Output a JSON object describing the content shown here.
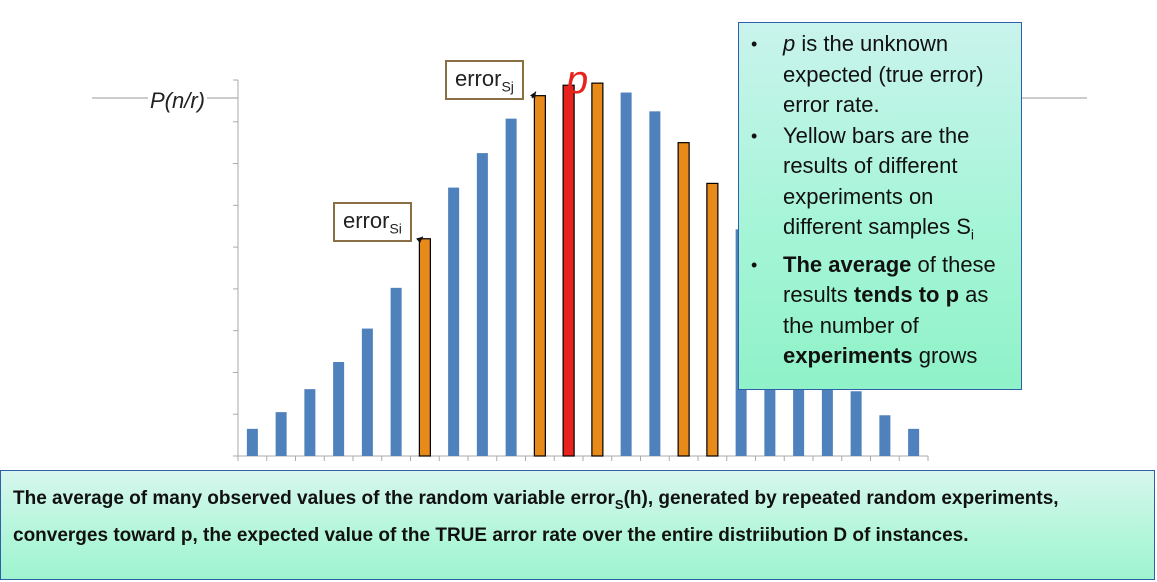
{
  "chart_data": {
    "type": "bar",
    "title": "",
    "ylabel": "P(n/r)",
    "xlabel": "",
    "values": [
      26,
      42,
      64,
      90,
      122,
      161,
      208,
      257,
      290,
      323,
      345,
      355,
      357,
      348,
      330,
      300,
      261,
      217,
      172,
      130,
      95,
      62,
      39,
      26
    ],
    "bar_colors": [
      "#4f81bd",
      "#4f81bd",
      "#4f81bd",
      "#4f81bd",
      "#4f81bd",
      "#4f81bd",
      "#e88a1a",
      "#4f81bd",
      "#4f81bd",
      "#4f81bd",
      "#e88a1a",
      "#e8231d",
      "#e88a1a",
      "#4f81bd",
      "#4f81bd",
      "#e88a1a",
      "#e88a1a",
      "#4f81bd",
      "#4f81bd",
      "#4f81bd",
      "#4f81bd",
      "#4f81bd",
      "#4f81bd",
      "#4f81bd"
    ],
    "ylim": [
      0,
      360
    ],
    "grid": false,
    "legend": "none",
    "colors": {
      "normal": "#4f81bd",
      "sample": "#e88a1a",
      "expected": "#e8231d",
      "outline": "#000000"
    }
  },
  "callouts": {
    "error_si": {
      "text": "error",
      "sub": "Si"
    },
    "error_sj": {
      "text": "error",
      "sub": "Sj"
    },
    "p_label": "p"
  },
  "notes": {
    "item1": {
      "italic": "p",
      "text": " is the unknown expected (true error) error rate."
    },
    "item2": {
      "text": "Yellow bars are the results of different experiments on different samples S",
      "sub": "i"
    },
    "item3": {
      "b1": "The average",
      "t1": " of these results ",
      "b2": "tends to p",
      "t2": " as the number of ",
      "b3": "experiments",
      "t3": " grows"
    }
  },
  "caption": {
    "part1": "The average of many observed values of the random variable  error",
    "sub": "S",
    "part2": "(h), generated by repeated random experiments, converges toward p, the expected value of the TRUE arror rate over the entire distriibution D of instances."
  }
}
